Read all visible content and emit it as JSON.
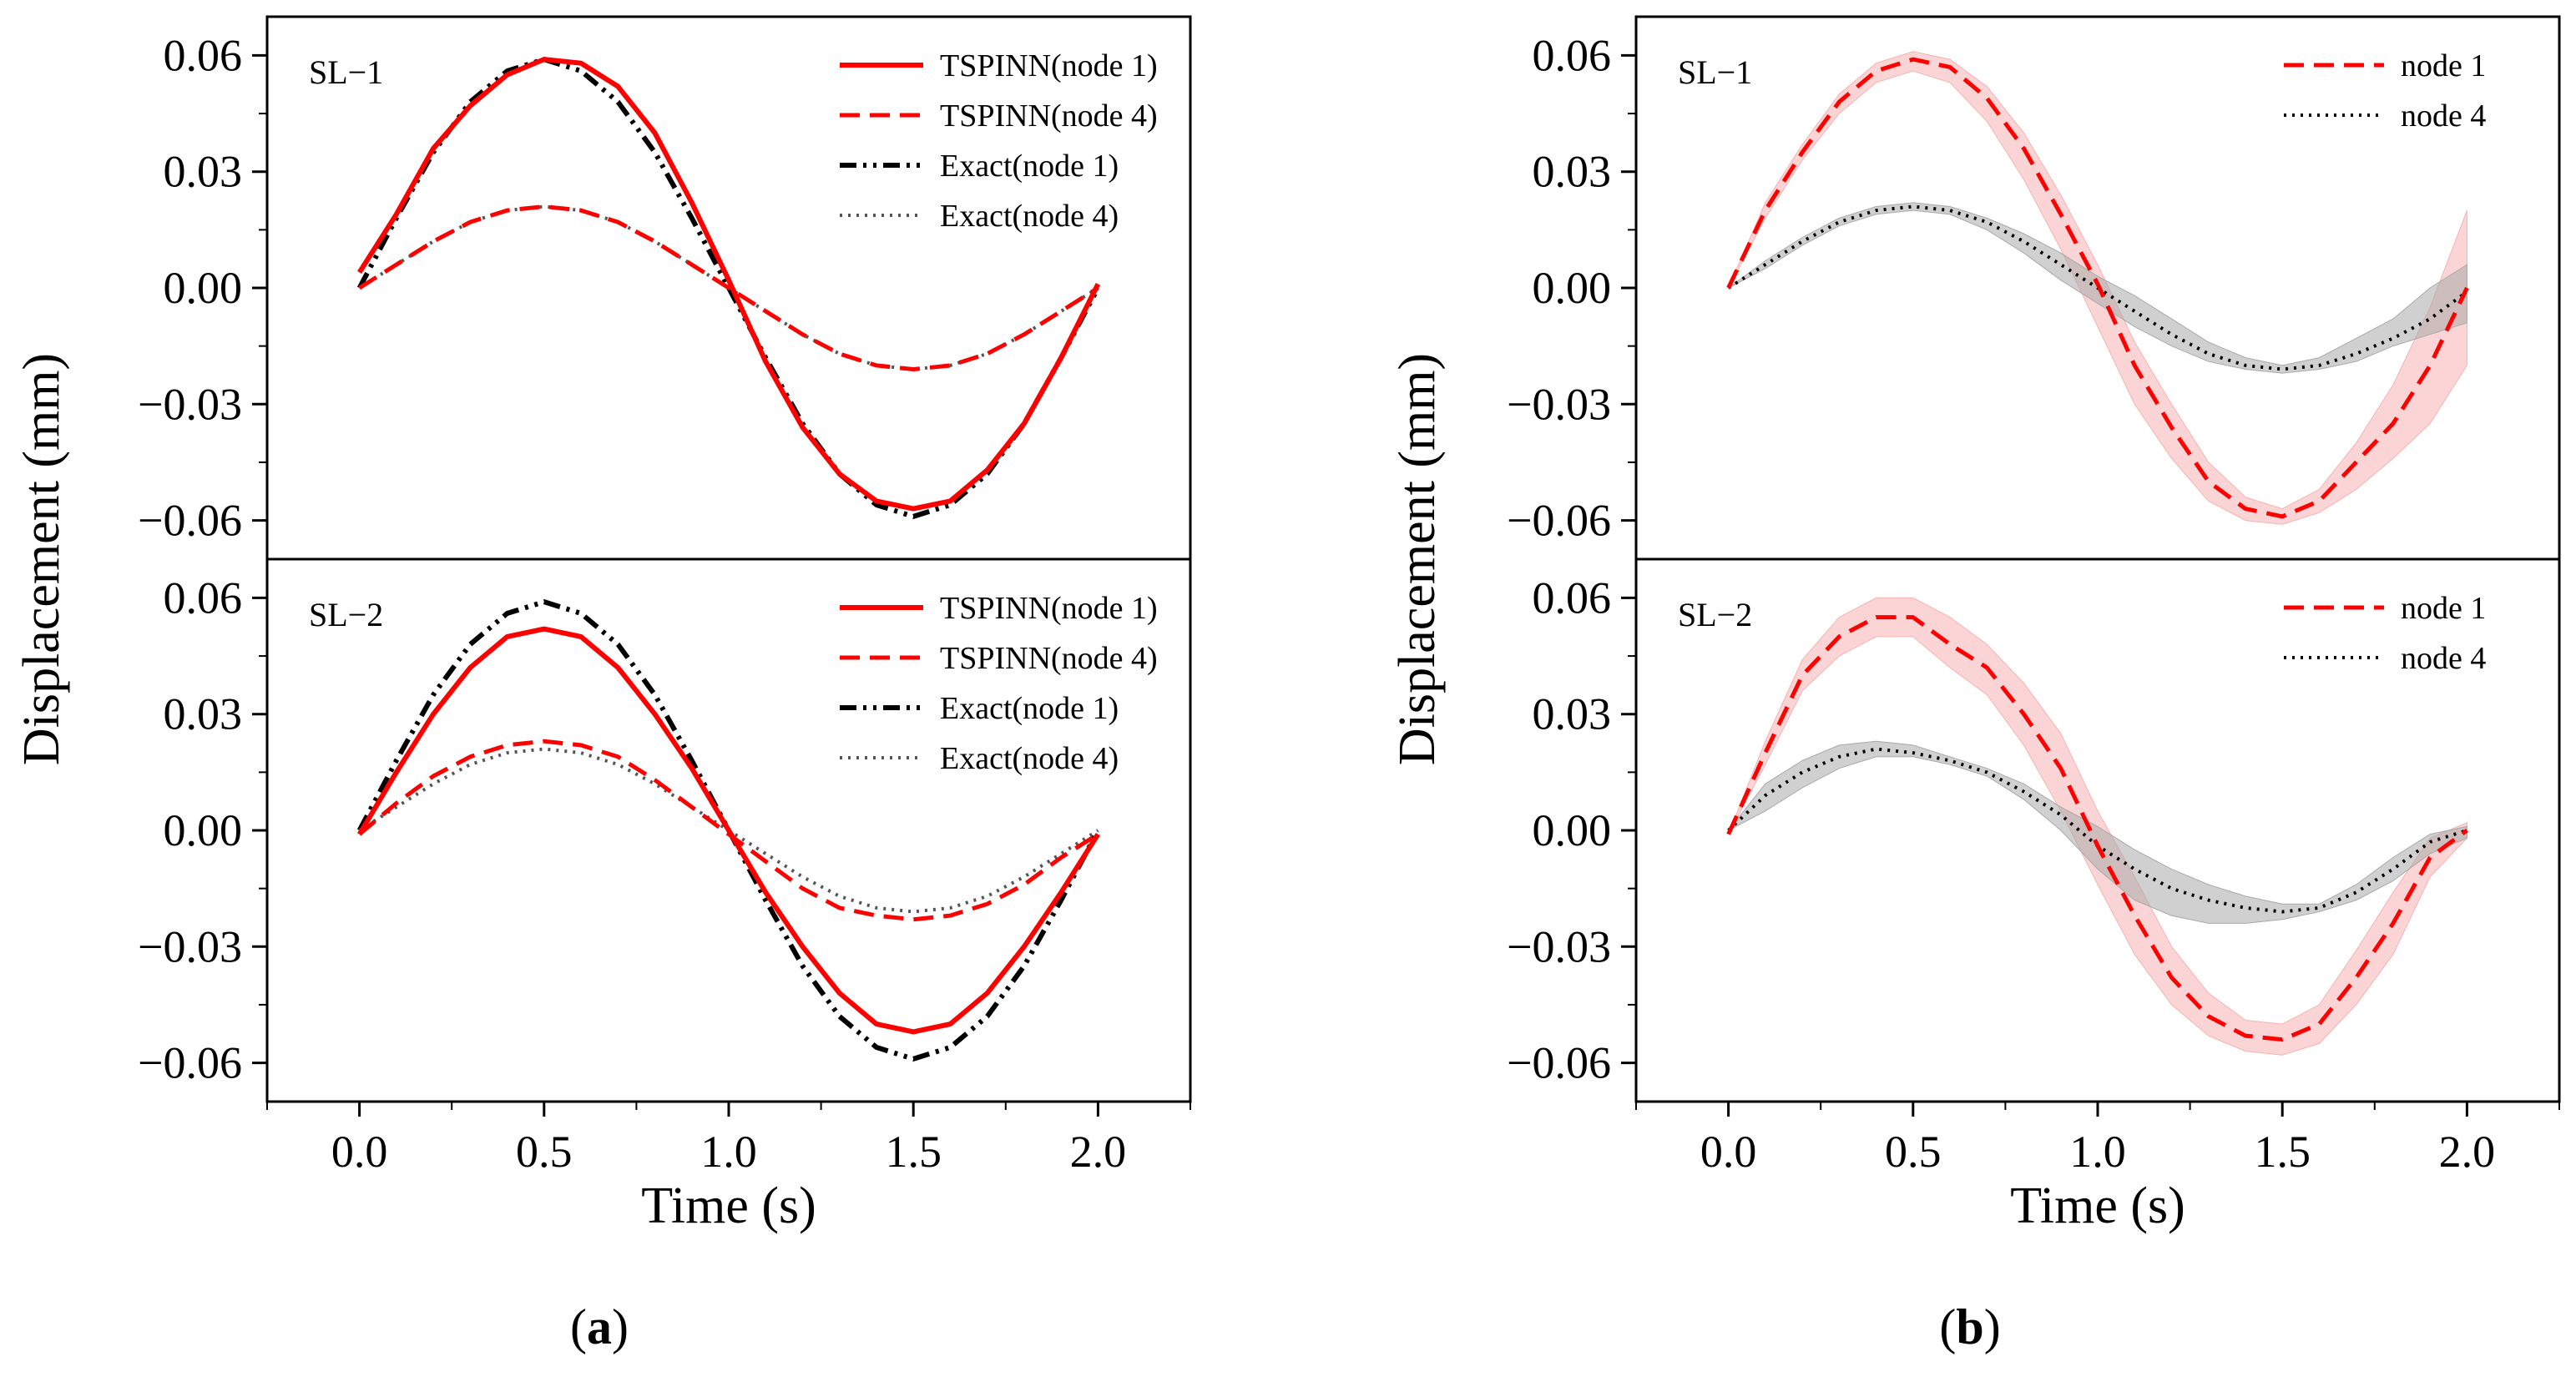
{
  "figure": {
    "caption_a": "a",
    "caption_b": "b"
  },
  "chart_data": [
    {
      "type": "line",
      "id": "a",
      "xlabel": "Time (s)",
      "ylabel": "Displacement (mm)",
      "xlim": [
        -0.25,
        2.25
      ],
      "ylim": [
        -0.07,
        0.07
      ],
      "x_ticks": [
        0.0,
        0.5,
        1.0,
        1.5,
        2.0
      ],
      "x_tick_labels": [
        "0.0",
        "0.5",
        "1.0",
        "1.5",
        "2.0"
      ],
      "y_ticks": [
        0.06,
        0.03,
        0.0,
        -0.03,
        -0.06
      ],
      "y_tick_labels": [
        "0.06",
        "0.03",
        "0.00",
        "−0.03",
        "−0.06"
      ],
      "legend_position": "top-right",
      "panels": [
        {
          "label": "SL−1",
          "series": [
            {
              "name": "TSPINN(node 1)",
              "style": "solid",
              "color": "#ff0000",
              "x": [
                0.0,
                0.1,
                0.2,
                0.3,
                0.4,
                0.5,
                0.6,
                0.7,
                0.8,
                0.9,
                1.0,
                1.1,
                1.2,
                1.3,
                1.4,
                1.5,
                1.6,
                1.7,
                1.8,
                1.9,
                2.0
              ],
              "y": [
                0.004,
                0.019,
                0.036,
                0.047,
                0.055,
                0.059,
                0.058,
                0.052,
                0.04,
                0.022,
                0.002,
                -0.019,
                -0.036,
                -0.048,
                -0.055,
                -0.057,
                -0.055,
                -0.047,
                -0.035,
                -0.018,
                0.001
              ]
            },
            {
              "name": "TSPINN(node 4)",
              "style": "dashed",
              "color": "#ff0000",
              "x": [
                0.0,
                0.1,
                0.2,
                0.3,
                0.4,
                0.5,
                0.6,
                0.7,
                0.8,
                0.9,
                1.0,
                1.1,
                1.2,
                1.3,
                1.4,
                1.5,
                1.6,
                1.7,
                1.8,
                1.9,
                2.0
              ],
              "y": [
                0.0,
                0.006,
                0.012,
                0.017,
                0.02,
                0.021,
                0.02,
                0.017,
                0.012,
                0.006,
                0.0,
                -0.006,
                -0.012,
                -0.017,
                -0.02,
                -0.021,
                -0.02,
                -0.017,
                -0.012,
                -0.006,
                0.0
              ]
            },
            {
              "name": "Exact(node 1)",
              "style": "dash-dot-dot",
              "color": "#000000",
              "x": [
                0.0,
                0.1,
                0.2,
                0.3,
                0.4,
                0.5,
                0.6,
                0.7,
                0.8,
                0.9,
                1.0,
                1.1,
                1.2,
                1.3,
                1.4,
                1.5,
                1.6,
                1.7,
                1.8,
                1.9,
                2.0
              ],
              "y": [
                0.0,
                0.018,
                0.035,
                0.048,
                0.056,
                0.059,
                0.056,
                0.048,
                0.035,
                0.018,
                0.0,
                -0.018,
                -0.035,
                -0.048,
                -0.056,
                -0.059,
                -0.056,
                -0.048,
                -0.035,
                -0.018,
                0.0
              ]
            },
            {
              "name": "Exact(node 4)",
              "style": "dotted",
              "color": "#555555",
              "x": [
                0.0,
                0.1,
                0.2,
                0.3,
                0.4,
                0.5,
                0.6,
                0.7,
                0.8,
                0.9,
                1.0,
                1.1,
                1.2,
                1.3,
                1.4,
                1.5,
                1.6,
                1.7,
                1.8,
                1.9,
                2.0
              ],
              "y": [
                0.0,
                0.006,
                0.012,
                0.017,
                0.02,
                0.021,
                0.02,
                0.017,
                0.012,
                0.006,
                0.0,
                -0.006,
                -0.012,
                -0.017,
                -0.02,
                -0.021,
                -0.02,
                -0.017,
                -0.012,
                -0.006,
                0.0
              ]
            }
          ]
        },
        {
          "label": "SL−2",
          "series": [
            {
              "name": "TSPINN(node 1)",
              "style": "solid",
              "color": "#ff0000",
              "x": [
                0.0,
                0.1,
                0.2,
                0.3,
                0.4,
                0.5,
                0.6,
                0.7,
                0.8,
                0.9,
                1.0,
                1.1,
                1.2,
                1.3,
                1.4,
                1.5,
                1.6,
                1.7,
                1.8,
                1.9,
                2.0
              ],
              "y": [
                -0.001,
                0.015,
                0.03,
                0.042,
                0.05,
                0.052,
                0.05,
                0.042,
                0.03,
                0.016,
                0.0,
                -0.016,
                -0.03,
                -0.042,
                -0.05,
                -0.052,
                -0.05,
                -0.042,
                -0.03,
                -0.016,
                -0.001
              ]
            },
            {
              "name": "TSPINN(node 4)",
              "style": "dashed",
              "color": "#ff0000",
              "x": [
                0.0,
                0.1,
                0.2,
                0.3,
                0.4,
                0.5,
                0.6,
                0.7,
                0.8,
                0.9,
                1.0,
                1.1,
                1.2,
                1.3,
                1.4,
                1.5,
                1.6,
                1.7,
                1.8,
                1.9,
                2.0
              ],
              "y": [
                -0.001,
                0.007,
                0.014,
                0.019,
                0.022,
                0.023,
                0.022,
                0.019,
                0.013,
                0.006,
                -0.001,
                -0.008,
                -0.015,
                -0.02,
                -0.022,
                -0.023,
                -0.022,
                -0.019,
                -0.014,
                -0.007,
                -0.001
              ]
            },
            {
              "name": "Exact(node 1)",
              "style": "dash-dot-dot",
              "color": "#000000",
              "x": [
                0.0,
                0.1,
                0.2,
                0.3,
                0.4,
                0.5,
                0.6,
                0.7,
                0.8,
                0.9,
                1.0,
                1.1,
                1.2,
                1.3,
                1.4,
                1.5,
                1.6,
                1.7,
                1.8,
                1.9,
                2.0
              ],
              "y": [
                0.0,
                0.018,
                0.035,
                0.048,
                0.056,
                0.059,
                0.056,
                0.048,
                0.035,
                0.018,
                0.0,
                -0.018,
                -0.035,
                -0.048,
                -0.056,
                -0.059,
                -0.056,
                -0.048,
                -0.035,
                -0.018,
                0.0
              ]
            },
            {
              "name": "Exact(node 4)",
              "style": "dotted",
              "color": "#555555",
              "x": [
                0.0,
                0.1,
                0.2,
                0.3,
                0.4,
                0.5,
                0.6,
                0.7,
                0.8,
                0.9,
                1.0,
                1.1,
                1.2,
                1.3,
                1.4,
                1.5,
                1.6,
                1.7,
                1.8,
                1.9,
                2.0
              ],
              "y": [
                0.0,
                0.006,
                0.012,
                0.017,
                0.02,
                0.021,
                0.02,
                0.017,
                0.012,
                0.006,
                0.0,
                -0.006,
                -0.012,
                -0.017,
                -0.02,
                -0.021,
                -0.02,
                -0.017,
                -0.012,
                -0.006,
                0.0
              ]
            }
          ]
        }
      ]
    },
    {
      "type": "line",
      "id": "b",
      "xlabel": "Time (s)",
      "ylabel": "Displacement (mm)",
      "xlim": [
        -0.25,
        2.25
      ],
      "ylim": [
        -0.07,
        0.07
      ],
      "x_ticks": [
        0.0,
        0.5,
        1.0,
        1.5,
        2.0
      ],
      "x_tick_labels": [
        "0.0",
        "0.5",
        "1.0",
        "1.5",
        "2.0"
      ],
      "y_ticks": [
        0.06,
        0.03,
        0.0,
        -0.03,
        -0.06
      ],
      "y_tick_labels": [
        "0.06",
        "0.03",
        "0.00",
        "−0.03",
        "−0.06"
      ],
      "legend_position": "top-right",
      "panels": [
        {
          "label": "SL−1",
          "series": [
            {
              "name": "node 1",
              "style": "dashed",
              "color": "#ff0000",
              "band_color": "#f7b2b2",
              "x": [
                0.0,
                0.1,
                0.2,
                0.3,
                0.4,
                0.5,
                0.6,
                0.7,
                0.8,
                0.9,
                1.0,
                1.1,
                1.2,
                1.3,
                1.4,
                1.5,
                1.6,
                1.7,
                1.8,
                1.9,
                2.0
              ],
              "y": [
                0.0,
                0.02,
                0.035,
                0.048,
                0.056,
                0.059,
                0.057,
                0.049,
                0.036,
                0.019,
                0.001,
                -0.02,
                -0.036,
                -0.05,
                -0.057,
                -0.059,
                -0.055,
                -0.045,
                -0.035,
                -0.02,
                0.0
              ],
              "lower": [
                0.0,
                0.018,
                0.033,
                0.045,
                0.053,
                0.056,
                0.053,
                0.043,
                0.028,
                0.01,
                -0.01,
                -0.03,
                -0.044,
                -0.055,
                -0.06,
                -0.061,
                -0.058,
                -0.052,
                -0.044,
                -0.035,
                -0.02
              ],
              "upper": [
                0.0,
                0.022,
                0.037,
                0.05,
                0.058,
                0.061,
                0.059,
                0.052,
                0.04,
                0.024,
                0.006,
                -0.014,
                -0.03,
                -0.045,
                -0.054,
                -0.057,
                -0.052,
                -0.04,
                -0.025,
                -0.005,
                0.02
              ]
            },
            {
              "name": "node 4",
              "style": "dotted",
              "color": "#000000",
              "band_color": "#a9a9a9",
              "x": [
                0.0,
                0.1,
                0.2,
                0.3,
                0.4,
                0.5,
                0.6,
                0.7,
                0.8,
                0.9,
                1.0,
                1.1,
                1.2,
                1.3,
                1.4,
                1.5,
                1.6,
                1.7,
                1.8,
                1.9,
                2.0
              ],
              "y": [
                0.0,
                0.006,
                0.012,
                0.017,
                0.02,
                0.021,
                0.02,
                0.017,
                0.012,
                0.006,
                0.0,
                -0.006,
                -0.012,
                -0.017,
                -0.02,
                -0.021,
                -0.02,
                -0.017,
                -0.013,
                -0.008,
                -0.001
              ],
              "lower": [
                0.0,
                0.005,
                0.011,
                0.016,
                0.019,
                0.02,
                0.019,
                0.015,
                0.009,
                0.002,
                -0.004,
                -0.01,
                -0.015,
                -0.019,
                -0.021,
                -0.022,
                -0.021,
                -0.019,
                -0.015,
                -0.012,
                -0.009
              ],
              "upper": [
                0.0,
                0.007,
                0.013,
                0.018,
                0.021,
                0.022,
                0.021,
                0.018,
                0.014,
                0.009,
                0.003,
                -0.002,
                -0.008,
                -0.014,
                -0.018,
                -0.02,
                -0.018,
                -0.013,
                -0.008,
                0.0,
                0.006
              ]
            }
          ]
        },
        {
          "label": "SL−2",
          "series": [
            {
              "name": "node 1",
              "style": "dashed",
              "color": "#ff0000",
              "band_color": "#f7b2b2",
              "x": [
                0.0,
                0.1,
                0.2,
                0.3,
                0.4,
                0.5,
                0.6,
                0.7,
                0.8,
                0.9,
                1.0,
                1.1,
                1.2,
                1.3,
                1.4,
                1.5,
                1.6,
                1.7,
                1.8,
                1.9,
                2.0
              ],
              "y": [
                -0.001,
                0.02,
                0.04,
                0.05,
                0.055,
                0.055,
                0.048,
                0.042,
                0.03,
                0.016,
                -0.004,
                -0.022,
                -0.038,
                -0.048,
                -0.053,
                -0.054,
                -0.05,
                -0.038,
                -0.024,
                -0.007,
                0.0
              ],
              "lower": [
                -0.001,
                0.017,
                0.036,
                0.045,
                0.05,
                0.05,
                0.042,
                0.035,
                0.022,
                0.005,
                -0.014,
                -0.032,
                -0.045,
                -0.053,
                -0.057,
                -0.058,
                -0.055,
                -0.045,
                -0.032,
                -0.012,
                -0.002
              ],
              "upper": [
                -0.001,
                0.023,
                0.044,
                0.055,
                0.06,
                0.06,
                0.055,
                0.048,
                0.038,
                0.025,
                0.005,
                -0.012,
                -0.03,
                -0.042,
                -0.049,
                -0.05,
                -0.045,
                -0.031,
                -0.016,
                -0.002,
                0.002
              ]
            },
            {
              "name": "node 4",
              "style": "dotted",
              "color": "#000000",
              "band_color": "#a9a9a9",
              "x": [
                0.0,
                0.1,
                0.2,
                0.3,
                0.4,
                0.5,
                0.6,
                0.7,
                0.8,
                0.9,
                1.0,
                1.1,
                1.2,
                1.3,
                1.4,
                1.5,
                1.6,
                1.7,
                1.8,
                1.9,
                2.0
              ],
              "y": [
                0.0,
                0.009,
                0.015,
                0.019,
                0.021,
                0.02,
                0.018,
                0.015,
                0.01,
                0.004,
                -0.004,
                -0.01,
                -0.015,
                -0.018,
                -0.02,
                -0.021,
                -0.02,
                -0.016,
                -0.01,
                -0.003,
                0.0
              ],
              "lower": [
                0.0,
                0.005,
                0.011,
                0.016,
                0.019,
                0.019,
                0.017,
                0.014,
                0.008,
                0.0,
                -0.01,
                -0.018,
                -0.022,
                -0.024,
                -0.024,
                -0.023,
                -0.021,
                -0.018,
                -0.013,
                -0.006,
                -0.002
              ],
              "upper": [
                0.0,
                0.012,
                0.018,
                0.022,
                0.023,
                0.022,
                0.019,
                0.016,
                0.012,
                0.006,
                0.001,
                -0.005,
                -0.01,
                -0.014,
                -0.017,
                -0.019,
                -0.019,
                -0.014,
                -0.007,
                -0.001,
                0.001
              ]
            }
          ]
        }
      ]
    }
  ]
}
